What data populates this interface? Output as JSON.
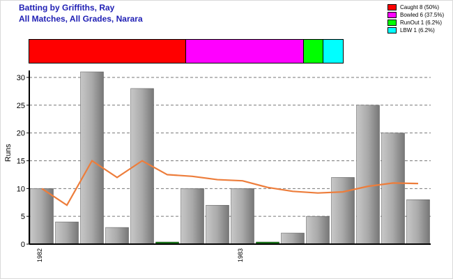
{
  "header": {
    "title": "Batting by Griffiths, Ray",
    "subtitle": "All Matches, All Grades, Narara"
  },
  "legend": [
    {
      "label": "Caught 8 (50%)",
      "color": "#ff0000"
    },
    {
      "label": "Bowled 6 (37.5%)",
      "color": "#ff00ff"
    },
    {
      "label": "RunOut 1 (6.2%)",
      "color": "#00ff00"
    },
    {
      "label": "LBW 1 (6.2%)",
      "color": "#00ffff"
    }
  ],
  "dismissals": [
    {
      "name": "Caught",
      "count": 8,
      "color": "#ff0000"
    },
    {
      "name": "Bowled",
      "count": 6,
      "color": "#ff00ff"
    },
    {
      "name": "RunOut",
      "count": 1,
      "color": "#00ff00"
    },
    {
      "name": "LBW",
      "count": 1,
      "color": "#00ffff"
    }
  ],
  "chart_data": {
    "type": "bar",
    "ylabel": "Runs",
    "ylim": [
      0,
      31
    ],
    "yticks": [
      0,
      5,
      10,
      15,
      20,
      25,
      30
    ],
    "grid": true,
    "x_tick_labels": [
      {
        "index": 0,
        "label": "1982"
      },
      {
        "index": 8,
        "label": "1983"
      }
    ],
    "series": [
      {
        "values": [
          10,
          4,
          31,
          3,
          28,
          0,
          10,
          7,
          10,
          0,
          2,
          5,
          12,
          25,
          20,
          8
        ]
      },
      {
        "values": [
          10,
          7,
          15,
          12,
          15,
          12.5,
          12.2,
          11.6,
          11.4,
          10.2,
          9.5,
          9.2,
          9.4,
          10.4,
          11.0,
          10.9
        ]
      }
    ],
    "zero_bar_color": "#1a7a1a",
    "bar_color": "#9a9a9a",
    "line_color": "#ed7d3b"
  }
}
